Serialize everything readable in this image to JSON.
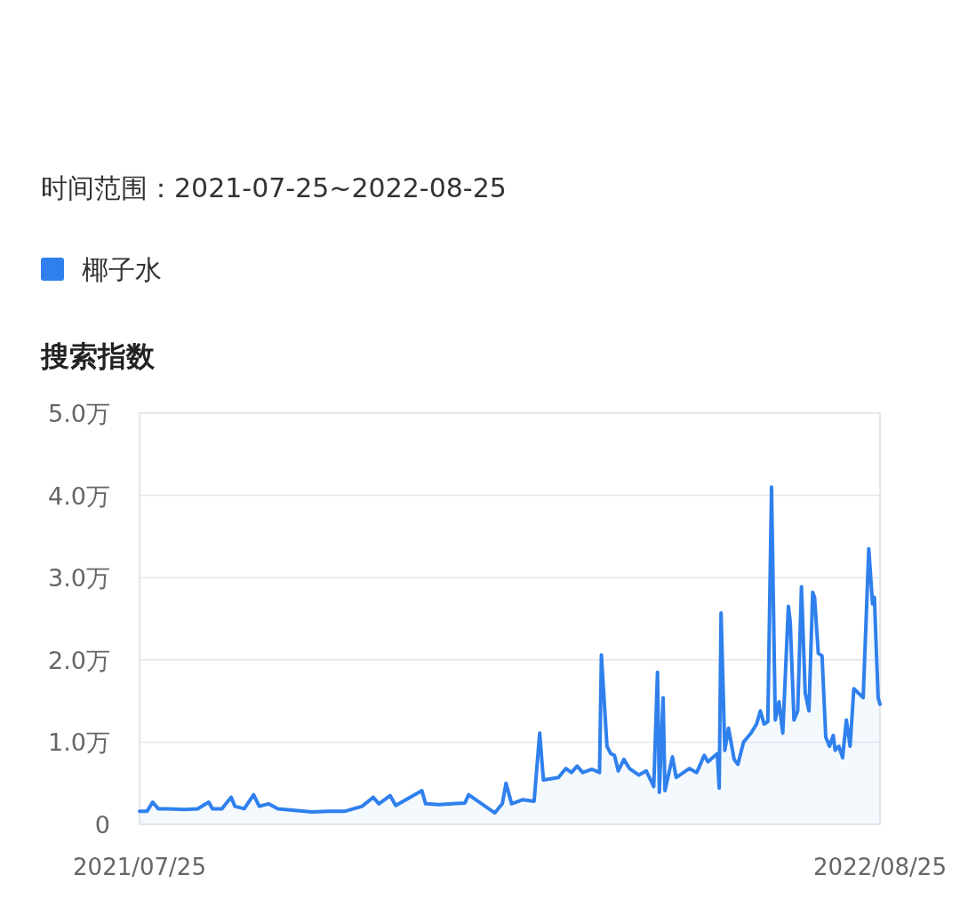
{
  "chart_data": {
    "type": "area",
    "subtitle": "时间范围：2021-07-25~2022-08-25",
    "ylabel": "搜索指数",
    "legend": "top left",
    "grid": "y",
    "xlim": [
      "2021-07-25",
      "2022-08-25"
    ],
    "xticks": [
      {
        "value": "2021-07-25",
        "label": "2021/07/25"
      },
      {
        "value": "2022-08-25",
        "label": "2022/08/25"
      }
    ],
    "ylim": [
      0,
      5
    ],
    "yticks": [
      0,
      {
        "value": 1,
        "label": "1.0万"
      },
      {
        "value": 2,
        "label": "2.0万"
      },
      {
        "value": 3,
        "label": "3.0万"
      },
      {
        "value": 4,
        "label": "4.0万"
      },
      {
        "value": 5,
        "label": "5.0万"
      }
    ],
    "x": [
      "2021-07-25",
      "2021-07-29",
      "2021-08-01",
      "2021-08-04",
      "2021-08-09",
      "2021-08-18",
      "2021-08-25",
      "2021-08-31",
      "2021-09-02",
      "2021-09-07",
      "2021-09-12",
      "2021-09-14",
      "2021-09-19",
      "2021-09-24",
      "2021-09-27",
      "2021-10-02",
      "2021-10-07",
      "2021-10-16",
      "2021-10-25",
      "2021-11-03",
      "2021-11-12",
      "2021-11-21",
      "2021-11-27",
      "2021-11-30",
      "2021-12-06",
      "2021-12-09",
      "2021-12-23",
      "2021-12-25",
      "2022-01-01",
      "2022-01-15",
      "2022-01-17",
      "2022-01-24",
      "2022-01-31",
      "2022-02-04",
      "2022-02-06",
      "2022-02-09",
      "2022-02-15",
      "2022-02-21",
      "2022-02-24",
      "2022-02-26",
      "2022-03-06",
      "2022-03-10",
      "2022-03-13",
      "2022-03-16",
      "2022-03-19",
      "2022-03-24",
      "2022-03-28",
      "2022-03-29",
      "2022-04-01",
      "2022-04-03",
      "2022-04-05",
      "2022-04-07",
      "2022-04-10",
      "2022-04-13",
      "2022-04-18",
      "2022-04-22",
      "2022-04-26",
      "2022-04-28",
      "2022-04-29",
      "2022-05-01",
      "2022-05-02",
      "2022-05-06",
      "2022-05-08",
      "2022-05-15",
      "2022-05-19",
      "2022-05-23",
      "2022-05-25",
      "2022-05-30",
      "2022-05-31",
      "2022-06-01",
      "2022-06-03",
      "2022-06-05",
      "2022-06-08",
      "2022-06-10",
      "2022-06-13",
      "2022-06-17",
      "2022-06-20",
      "2022-06-22",
      "2022-06-24",
      "2022-06-26",
      "2022-06-28",
      "2022-06-30",
      "2022-07-02",
      "2022-07-04",
      "2022-07-07",
      "2022-07-08",
      "2022-07-10",
      "2022-07-12",
      "2022-07-14",
      "2022-07-16",
      "2022-07-18",
      "2022-07-20",
      "2022-07-21",
      "2022-07-23",
      "2022-07-25",
      "2022-07-27",
      "2022-07-29",
      "2022-07-31",
      "2022-08-01",
      "2022-08-03",
      "2022-08-05",
      "2022-08-07",
      "2022-08-09",
      "2022-08-11",
      "2022-08-16",
      "2022-08-19",
      "2022-08-21",
      "2022-08-22",
      "2022-08-24",
      "2022-08-25"
    ],
    "series": [
      {
        "name": "椰子水",
        "color": "#2f80ed",
        "values": [
          0.16,
          0.16,
          0.27,
          0.19,
          0.19,
          0.18,
          0.19,
          0.27,
          0.19,
          0.19,
          0.33,
          0.22,
          0.19,
          0.36,
          0.22,
          0.25,
          0.19,
          0.17,
          0.15,
          0.16,
          0.16,
          0.22,
          0.33,
          0.25,
          0.35,
          0.23,
          0.41,
          0.25,
          0.24,
          0.26,
          0.36,
          0.25,
          0.14,
          0.25,
          0.5,
          0.25,
          0.3,
          0.28,
          1.11,
          0.54,
          0.57,
          0.68,
          0.63,
          0.71,
          0.63,
          0.67,
          0.63,
          2.06,
          0.95,
          0.86,
          0.84,
          0.65,
          0.79,
          0.68,
          0.6,
          0.65,
          0.46,
          1.85,
          0.39,
          1.54,
          0.41,
          0.82,
          0.57,
          0.68,
          0.63,
          0.84,
          0.76,
          0.86,
          0.44,
          2.57,
          0.9,
          1.17,
          0.79,
          0.73,
          1.0,
          1.11,
          1.22,
          1.38,
          1.22,
          1.25,
          4.1,
          1.27,
          1.49,
          1.11,
          2.65,
          2.46,
          1.27,
          1.38,
          2.89,
          1.6,
          1.38,
          2.82,
          2.76,
          2.08,
          2.05,
          1.06,
          0.95,
          1.08,
          0.9,
          0.95,
          0.81,
          1.27,
          0.95,
          1.65,
          1.54,
          3.35,
          2.68,
          2.76,
          1.54,
          1.46
        ]
      }
    ]
  }
}
